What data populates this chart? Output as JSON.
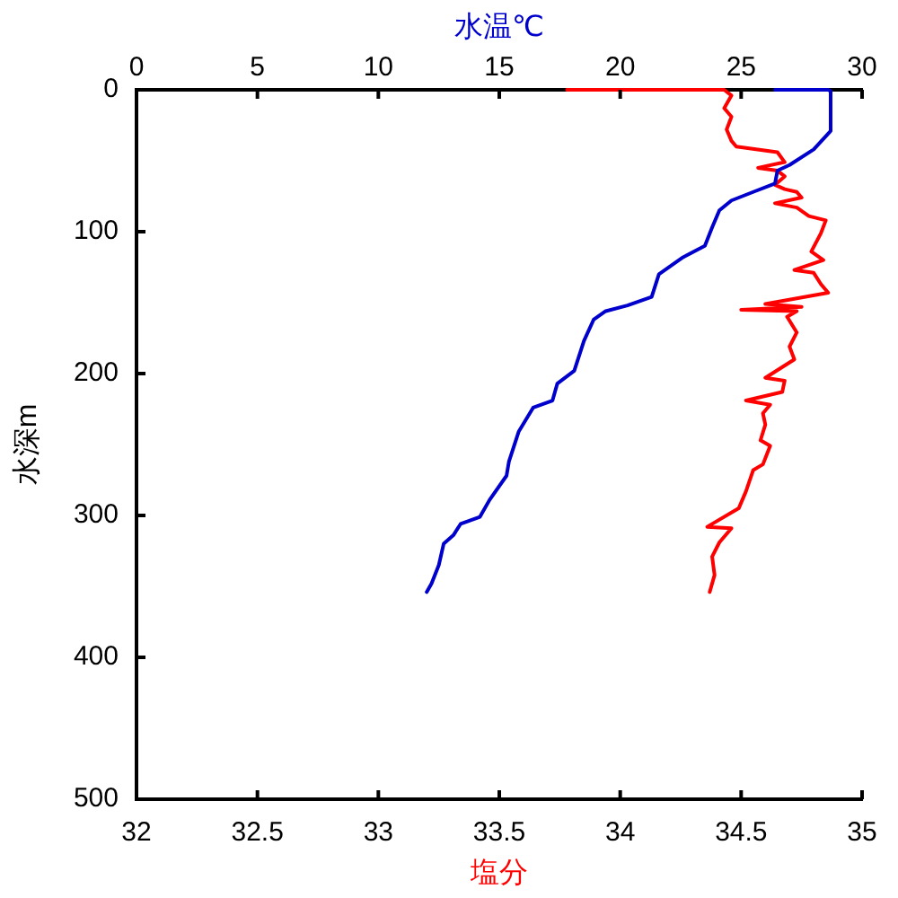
{
  "chart_data": {
    "type": "line",
    "xlabel": "塩分",
    "x2label": "水温℃",
    "ylabel": "水深m",
    "xlim": [
      32,
      35
    ],
    "xticks": [
      32,
      32.5,
      33,
      33.5,
      34,
      34.5,
      35
    ],
    "x2lim": [
      0,
      30
    ],
    "x2ticks": [
      0,
      5,
      10,
      15,
      20,
      25,
      30
    ],
    "ylim": [
      500,
      0
    ],
    "yticks": [
      0,
      100,
      200,
      300,
      400,
      500
    ],
    "grid": false,
    "legend": false,
    "marker": "none",
    "line_style": "solid",
    "series": [
      {
        "axis": "x2",
        "color": "#0000cc",
        "x": [
          26.4,
          28.6,
          28.7,
          28.7,
          28.0,
          27.0,
          26.5,
          26.4,
          25.5,
          24.6,
          24.1,
          23.8,
          23.5,
          22.6,
          21.6,
          21.3,
          20.3,
          19.4,
          18.9,
          18.5,
          18.1,
          17.4,
          17.2,
          16.4,
          15.8,
          15.4,
          15.3,
          14.6,
          14.2,
          13.4,
          13.1,
          12.7,
          12.5,
          12.2,
          12.0
        ],
        "values": [
          0,
          0,
          1,
          29,
          42,
          53,
          57,
          66,
          72,
          78,
          85,
          97,
          110,
          118,
          130,
          146,
          152,
          156,
          162,
          177,
          198,
          207,
          219,
          224,
          241,
          262,
          272,
          289,
          301,
          306,
          314,
          320,
          335,
          348,
          354
        ]
      },
      {
        "color": "#ff0000",
        "x": [
          33.78,
          34.43,
          34.46,
          34.43,
          34.46,
          34.44,
          34.46,
          34.48,
          34.65,
          34.68,
          34.57,
          34.65,
          34.68,
          34.64,
          34.68,
          34.73,
          34.75,
          34.64,
          34.73,
          34.78,
          34.85,
          34.83,
          34.79,
          34.84,
          34.72,
          34.8,
          34.83,
          34.86,
          34.6,
          34.75,
          34.5,
          34.73,
          34.69,
          34.73,
          34.7,
          34.72,
          34.6,
          34.68,
          34.67,
          34.52,
          34.62,
          34.59,
          34.6,
          34.58,
          34.62,
          34.59,
          34.55,
          34.52,
          34.49,
          34.36,
          34.46,
          34.41,
          34.38,
          34.39,
          34.37
        ],
        "values": [
          0,
          0,
          4,
          13,
          19,
          28,
          36,
          40,
          44,
          51,
          55,
          57,
          61,
          67,
          70,
          72,
          76,
          80,
          83,
          89,
          92,
          101,
          114,
          120,
          127,
          129,
          137,
          143,
          151,
          153,
          155,
          156,
          160,
          171,
          181,
          190,
          203,
          205,
          213,
          219,
          222,
          228,
          236,
          247,
          251,
          264,
          268,
          283,
          295,
          308,
          309,
          319,
          329,
          342,
          354
        ]
      }
    ]
  }
}
